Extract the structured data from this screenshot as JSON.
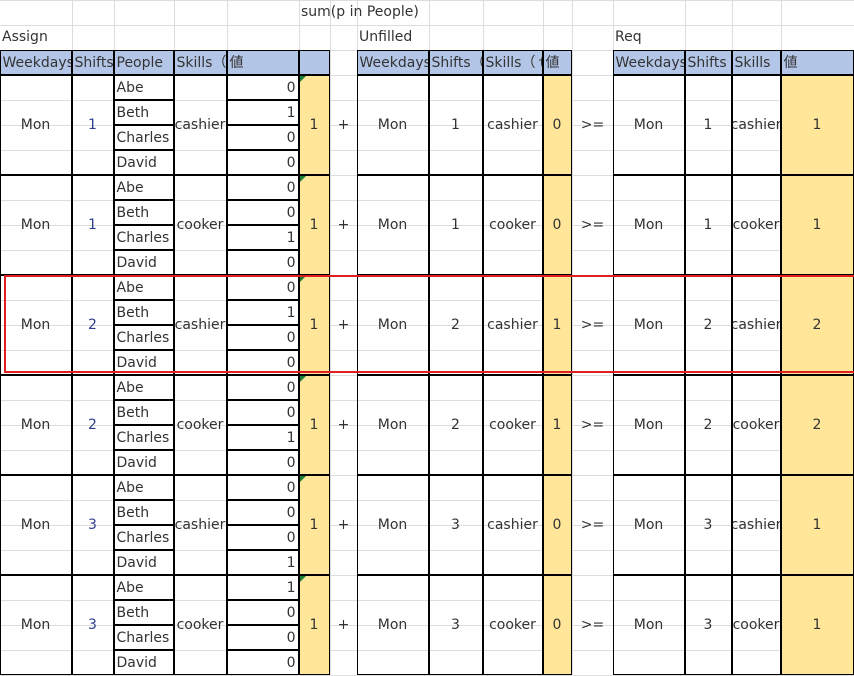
{
  "formula_label": "sum(p in People)",
  "sections": {
    "assign": "Assign",
    "unfilled": "Unfilled",
    "req": "Req"
  },
  "headers": {
    "assign": [
      "Weekdays",
      "Shifts",
      "People",
      "Skills（",
      "値",
      ""
    ],
    "unfilled": [
      "Weekdays",
      "Shifts（",
      "Skills（ｔ",
      "値"
    ],
    "req": [
      "Weekdays",
      "Shifts",
      "Skills",
      "値"
    ]
  },
  "operators": {
    "plus": "+",
    "gte": ">="
  },
  "people": [
    "Abe",
    "Beth",
    "Charles",
    "David"
  ],
  "groups": [
    {
      "weekday": "Mon",
      "shift": "1",
      "skill": "cashier",
      "assign": [
        0,
        1,
        0,
        0
      ],
      "sum": 1,
      "unfilled": 0,
      "req": 1
    },
    {
      "weekday": "Mon",
      "shift": "1",
      "skill": "cooker",
      "assign": [
        0,
        0,
        1,
        0
      ],
      "sum": 1,
      "unfilled": 0,
      "req": 1
    },
    {
      "weekday": "Mon",
      "shift": "2",
      "skill": "cashier",
      "assign": [
        0,
        1,
        0,
        0
      ],
      "sum": 1,
      "unfilled": 1,
      "req": 2,
      "highlighted": true
    },
    {
      "weekday": "Mon",
      "shift": "2",
      "skill": "cooker",
      "assign": [
        0,
        0,
        1,
        0
      ],
      "sum": 1,
      "unfilled": 1,
      "req": 2
    },
    {
      "weekday": "Mon",
      "shift": "3",
      "skill": "cashier",
      "assign": [
        0,
        0,
        0,
        1
      ],
      "sum": 1,
      "unfilled": 0,
      "req": 1
    },
    {
      "weekday": "Mon",
      "shift": "3",
      "skill": "cooker",
      "assign": [
        1,
        0,
        0,
        0
      ],
      "sum": 1,
      "unfilled": 0,
      "req": 1
    }
  ],
  "colors": {
    "header": "#b4c6e7",
    "highlight_fill": "#ffe699",
    "selection": "#e02020"
  }
}
